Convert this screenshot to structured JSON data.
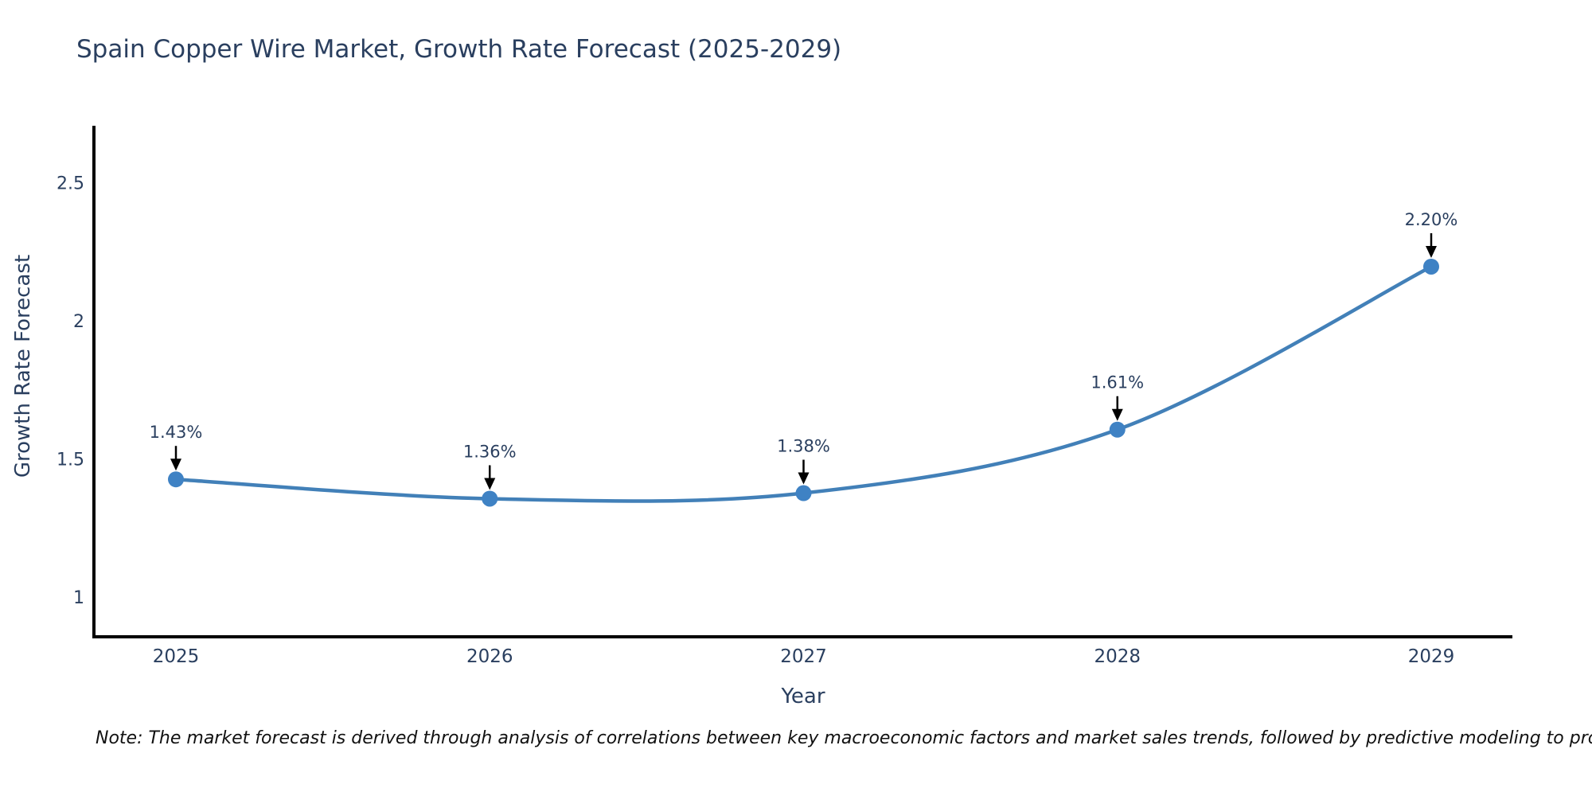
{
  "page": {
    "note": "Note: The market forecast is derived through analysis of correlations between key macroeconomic factors and market sales trends, followed by predictive modeling to project future sales"
  },
  "chart_data": {
    "type": "line",
    "title": "Spain Copper Wire Market, Growth Rate Forecast (2025-2029)",
    "xlabel": "Year",
    "ylabel": "Growth Rate Forecast",
    "categories": [
      "2025",
      "2026",
      "2027",
      "2028",
      "2029"
    ],
    "series": [
      {
        "name": "Growth Rate Forecast",
        "values": [
          1.43,
          1.36,
          1.38,
          1.61,
          2.2
        ],
        "point_labels": [
          "1.43%",
          "1.36%",
          "1.38%",
          "1.61%",
          "2.20%"
        ]
      }
    ],
    "yticks": [
      2.5,
      2,
      1.5,
      1
    ],
    "ylim": [
      0.86,
      2.71
    ],
    "grid": false,
    "legend_position": "none",
    "smooth": true,
    "annotation_style": "value label above each point with downward black arrow",
    "colors": {
      "line": "#4280b8",
      "marker": "#3f82c4",
      "axis": "#000000",
      "text": "#2a3f5f",
      "note_text": "#111111"
    }
  }
}
